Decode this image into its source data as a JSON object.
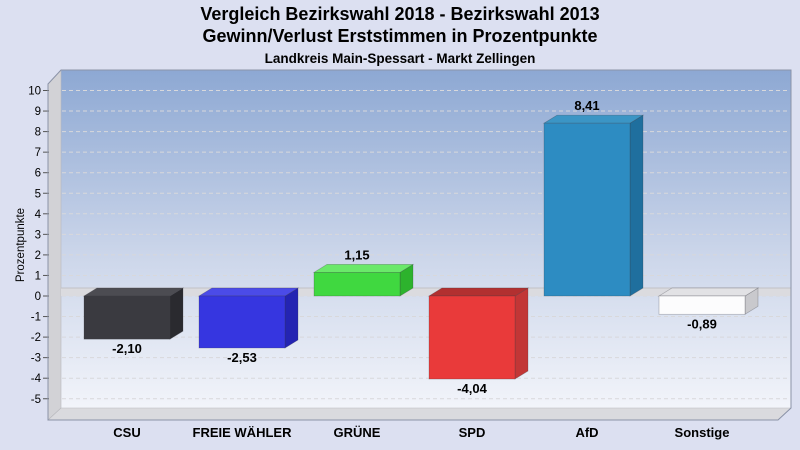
{
  "header": {
    "title_line1": "Vergleich Bezirkswahl 2018 - Bezirkswahl 2013",
    "title_line2": "Gewinn/Verlust Erststimmen in Prozentpunkte",
    "subtitle": "Landkreis Main-Spessart - Markt Zellingen"
  },
  "chart_data": {
    "type": "bar",
    "title": "Vergleich Bezirkswahl 2018 - Bezirkswahl 2013",
    "subtitle2": "Gewinn/Verlust Erststimmen in Prozentpunkte",
    "subtitle3": "Landkreis Main-Spessart - Markt Zellingen",
    "categories": [
      "CSU",
      "FREIE WÄHLER",
      "GRÜNE",
      "SPD",
      "AfD",
      "Sonstige"
    ],
    "values": [
      -2.1,
      -2.53,
      1.15,
      -4.04,
      8.41,
      -0.89
    ],
    "value_labels": [
      "-2,10",
      "-2,53",
      "1,15",
      "-4,04",
      "8,41",
      "-0,89"
    ],
    "xlabel": "",
    "ylabel": "Prozentpunkte",
    "yticks": [
      10,
      9,
      8,
      7,
      6,
      5,
      4,
      3,
      2,
      1,
      0,
      -1,
      -2,
      -3,
      -4,
      -5
    ],
    "ylim": [
      -5.8,
      11
    ],
    "grid": "horizontal-dashed",
    "legend": "none",
    "style": "3d-bars",
    "bar_colors": [
      {
        "front": "#3a3a40",
        "top": "#4c4c52",
        "side": "#2a2a2f"
      },
      {
        "front": "#3636e0",
        "top": "#4b4be8",
        "side": "#2424b2"
      },
      {
        "front": "#40d840",
        "top": "#6ae96a",
        "side": "#2db32d"
      },
      {
        "front": "#e93a3a",
        "top": "#b23030",
        "side": "#c23636"
      },
      {
        "front": "#2d8cc2",
        "top": "#3b95c5",
        "side": "#1f6f9e"
      },
      {
        "front": "#fcfcfd",
        "top": "#e2e2e5",
        "side": "#c9c9cd"
      }
    ]
  },
  "colors": {
    "page_bg": "#dce0f1",
    "plot_gradient_top": "#8da8d3",
    "plot_gradient_mid": "#ccd6ea",
    "plot_gradient_bottom": "#f2f4fa",
    "wall": "#d2d2d6",
    "floor": "#dadade",
    "zero_band": "#dbdbdf",
    "gridline": "#d8d8db",
    "frame": "#8b93a8",
    "tick": "#555555",
    "text": "#000000"
  }
}
